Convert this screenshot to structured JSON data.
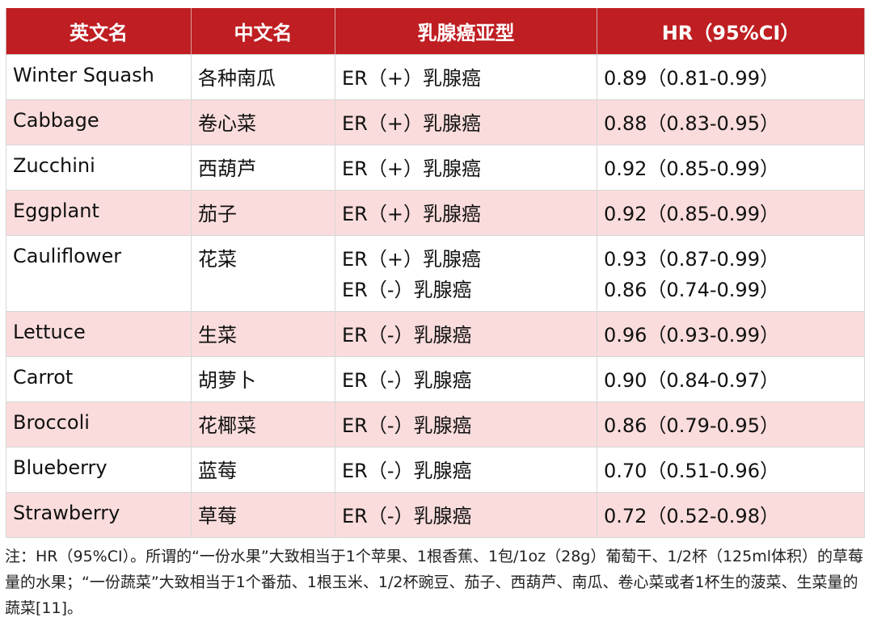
{
  "headers": {
    "english_name": "英文名",
    "chinese_name": "中文名",
    "subtype": "乳腺癌亚型",
    "hr": "HR（95%CI）"
  },
  "rows": [
    {
      "en": "Winter Squash",
      "zh": "各种南瓜",
      "subtypes": [
        "ER（+）乳腺癌"
      ],
      "hrs": [
        "0.89（0.81-0.99）"
      ]
    },
    {
      "en": "Cabbage",
      "zh": "卷心菜",
      "subtypes": [
        "ER（+）乳腺癌"
      ],
      "hrs": [
        "0.88（0.83-0.95）"
      ]
    },
    {
      "en": "Zucchini",
      "zh": "西葫芦",
      "subtypes": [
        "ER（+）乳腺癌"
      ],
      "hrs": [
        "0.92（0.85-0.99）"
      ]
    },
    {
      "en": "Eggplant",
      "zh": "茄子",
      "subtypes": [
        "ER（+）乳腺癌"
      ],
      "hrs": [
        "0.92（0.85-0.99）"
      ]
    },
    {
      "en": "Cauliflower",
      "zh": "花菜",
      "subtypes": [
        "ER（+）乳腺癌",
        "ER（-）乳腺癌"
      ],
      "hrs": [
        "0.93（0.87-0.99）",
        "0.86（0.74-0.99）"
      ]
    },
    {
      "en": "Lettuce",
      "zh": "生菜",
      "subtypes": [
        "ER（-）乳腺癌"
      ],
      "hrs": [
        "0.96（0.93-0.99）"
      ]
    },
    {
      "en": "Carrot",
      "zh": "胡萝卜",
      "subtypes": [
        "ER（-）乳腺癌"
      ],
      "hrs": [
        "0.90（0.84-0.97）"
      ]
    },
    {
      "en": "Broccoli",
      "zh": "花椰菜",
      "subtypes": [
        "ER（-）乳腺癌"
      ],
      "hrs": [
        "0.86（0.79-0.95）"
      ]
    },
    {
      "en": "Blueberry",
      "zh": "蓝莓",
      "subtypes": [
        "ER（-）乳腺癌"
      ],
      "hrs": [
        "0.70（0.51-0.96）"
      ]
    },
    {
      "en": "Strawberry",
      "zh": "草莓",
      "subtypes": [
        "ER（-）乳腺癌"
      ],
      "hrs": [
        "0.72（0.52-0.98）"
      ]
    }
  ],
  "footnote": "注：HR（95%CI）。所谓的“一份水果”大致相当于1个苹果、1根香蕉、1包/1oz（28g）葡萄干、1/2杯（125ml体积）的草莓量的水果；“一份蔬菜”大致相当于1个番茄、1根玉米、1/2杯豌豆、茄子、西葫芦、南瓜、卷心菜或者1杯生的菠菜、生菜量的蔬菜[11]。",
  "colors": {
    "header_bg": "#bf1e22",
    "header_text": "#ffffff",
    "stripe_bg": "#fadcdc",
    "border": "#d7d7d7"
  }
}
